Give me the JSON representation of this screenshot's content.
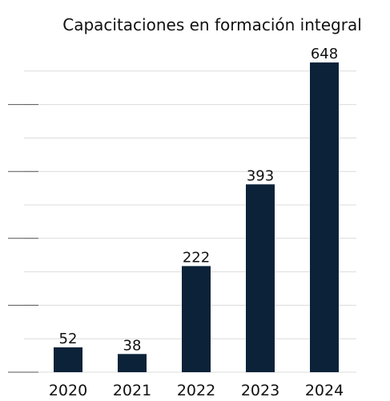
{
  "chart_data": {
    "type": "bar",
    "title": "Capacitaciones en formación integral",
    "categories": [
      "2020",
      "2021",
      "2022",
      "2023",
      "2024"
    ],
    "values": [
      52,
      38,
      222,
      393,
      648
    ],
    "color": "#0b2239",
    "ylim": [
      0,
      700
    ],
    "yticks": [
      0,
      70,
      140,
      210,
      280,
      350,
      420,
      490,
      560,
      630
    ],
    "grid": true
  }
}
